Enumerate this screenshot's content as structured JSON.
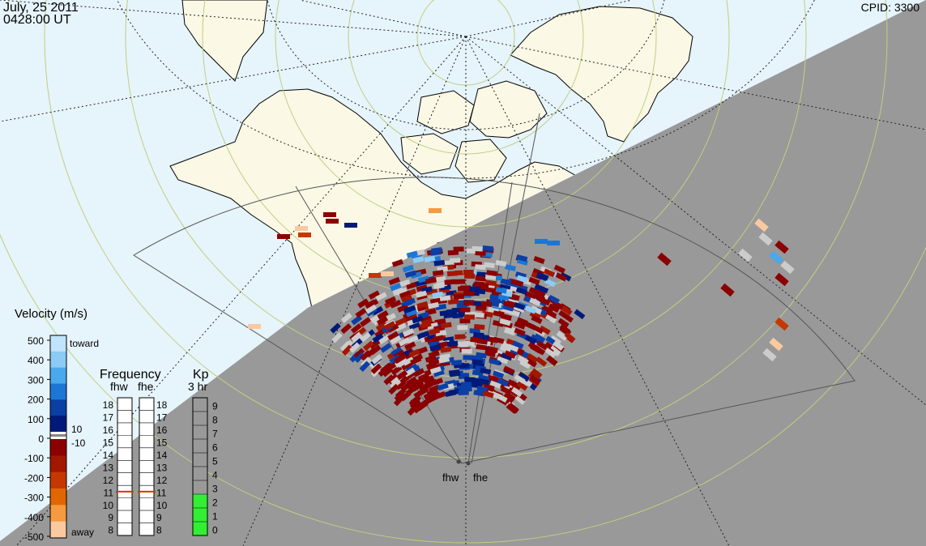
{
  "header": {
    "date": "July, 25 2011",
    "time": "0428:00 UT",
    "cpid": "CPID:  3300"
  },
  "colors": {
    "day_ocean": "#e6f4fb",
    "night": "#999999",
    "land": "#fbf8e6",
    "grid_latitude": "#bfcf80",
    "grid_longitude": "#222222"
  },
  "radars": {
    "names": [
      "fhw",
      "fhe"
    ]
  },
  "velocity_scale": {
    "title": "Velocity (m/s)",
    "ticks": [
      "500",
      "400",
      "300",
      "200",
      "100",
      "0",
      "-100",
      "-200",
      "-300",
      "-400",
      "-500"
    ],
    "toward_label": "toward",
    "away_label": "away",
    "near_zero_top": "10",
    "near_zero_bottom": "-10",
    "toward_colors": [
      "#c0e4fa",
      "#8ccbf5",
      "#4aa9ec",
      "#1c76d4",
      "#0a3fa6",
      "#001a7a"
    ],
    "away_colors": [
      "#8b0000",
      "#a31600",
      "#c53800",
      "#e26600",
      "#f59a40",
      "#fac9a0"
    ]
  },
  "frequency_scale": {
    "title": "Frequency",
    "columns": [
      "fhw",
      "fhe"
    ],
    "ticks": [
      "18",
      "17",
      "16",
      "15",
      "14",
      "13",
      "12",
      "11",
      "10",
      "9",
      "8"
    ],
    "fhw_current_mhz": 11,
    "fhe_current_mhz": 11,
    "marker_color": "#e03000"
  },
  "kp_scale": {
    "title": "Kp",
    "subtitle": "3 hr",
    "ticks": [
      "9",
      "8",
      "7",
      "6",
      "5",
      "4",
      "3",
      "2",
      "1",
      "0"
    ],
    "value": 3,
    "fill_color": "#33ee33"
  }
}
